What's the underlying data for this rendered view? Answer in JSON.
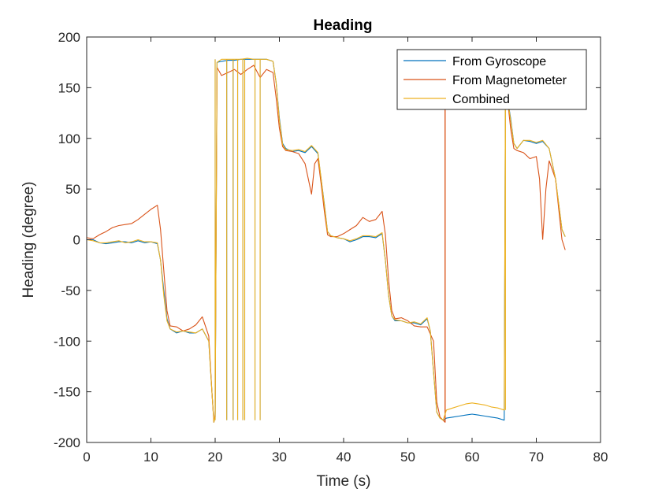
{
  "chart_data": {
    "type": "line",
    "title": "Heading",
    "xlabel": "Time (s)",
    "ylabel": "Heading (degree)",
    "xlim": [
      0,
      80
    ],
    "ylim": [
      -200,
      200
    ],
    "xticks": [
      0,
      10,
      20,
      30,
      40,
      50,
      60,
      70,
      80
    ],
    "yticks": [
      -200,
      -150,
      -100,
      -50,
      0,
      50,
      100,
      150,
      200
    ],
    "grid": false,
    "legend_position": "top-right",
    "series": [
      {
        "name": "From Gyroscope",
        "color": "#0072BD",
        "points": [
          [
            0,
            0
          ],
          [
            1,
            0
          ],
          [
            2,
            -3
          ],
          [
            3,
            -4
          ],
          [
            4,
            -3
          ],
          [
            5,
            -2
          ],
          [
            6,
            -2
          ],
          [
            7,
            -3
          ],
          [
            8,
            -1
          ],
          [
            9,
            -3
          ],
          [
            10,
            -2
          ],
          [
            11,
            -4
          ],
          [
            11.5,
            -20
          ],
          [
            12,
            -50
          ],
          [
            12.5,
            -78
          ],
          [
            13,
            -88
          ],
          [
            14,
            -92
          ],
          [
            15,
            -90
          ],
          [
            16,
            -92
          ],
          [
            17,
            -92
          ],
          [
            18,
            -88
          ],
          [
            19,
            -100
          ],
          [
            19.5,
            -150
          ],
          [
            19.8,
            -180
          ],
          [
            20,
            -175
          ],
          [
            20.3,
            175
          ],
          [
            21,
            176
          ],
          [
            22,
            177
          ],
          [
            23,
            177
          ],
          [
            24,
            178
          ],
          [
            25,
            178
          ],
          [
            26,
            178
          ],
          [
            27,
            178
          ],
          [
            28,
            178
          ],
          [
            29,
            176
          ],
          [
            29.5,
            155
          ],
          [
            30,
            120
          ],
          [
            30.5,
            95
          ],
          [
            31,
            90
          ],
          [
            32,
            87
          ],
          [
            33,
            88
          ],
          [
            34,
            86
          ],
          [
            35,
            92
          ],
          [
            36,
            85
          ],
          [
            36.5,
            60
          ],
          [
            37,
            35
          ],
          [
            37.5,
            8
          ],
          [
            38,
            4
          ],
          [
            39,
            2
          ],
          [
            40,
            1
          ],
          [
            41,
            -2
          ],
          [
            42,
            0
          ],
          [
            43,
            3
          ],
          [
            44,
            3
          ],
          [
            45,
            2
          ],
          [
            46,
            6
          ],
          [
            46.5,
            -20
          ],
          [
            47,
            -55
          ],
          [
            47.5,
            -75
          ],
          [
            48,
            -80
          ],
          [
            49,
            -80
          ],
          [
            50,
            -82
          ],
          [
            51,
            -82
          ],
          [
            52,
            -84
          ],
          [
            53,
            -78
          ],
          [
            53.5,
            -90
          ],
          [
            54,
            -130
          ],
          [
            54.5,
            -170
          ],
          [
            55,
            -176
          ],
          [
            55.5,
            -178
          ],
          [
            56,
            -176
          ],
          [
            57,
            -175
          ],
          [
            58,
            -174
          ],
          [
            59,
            -173
          ],
          [
            60,
            -172
          ],
          [
            61,
            -173
          ],
          [
            62,
            -174
          ],
          [
            63,
            -175
          ],
          [
            64,
            -176
          ],
          [
            65,
            -178
          ],
          [
            65.2,
            165
          ],
          [
            65.5,
            140
          ],
          [
            66,
            120
          ],
          [
            66.5,
            95
          ],
          [
            67,
            90
          ],
          [
            68,
            98
          ],
          [
            69,
            97
          ],
          [
            70,
            95
          ],
          [
            71,
            97
          ],
          [
            72,
            90
          ],
          [
            73,
            60
          ],
          [
            74,
            10
          ],
          [
            74.5,
            3
          ]
        ],
        "vertical_jumps": [
          [
            20,
            -178,
            178
          ],
          [
            21.8,
            -178,
            178
          ],
          [
            22.8,
            -178,
            178
          ],
          [
            23.5,
            -178,
            178
          ],
          [
            24.3,
            -178,
            178
          ],
          [
            24.6,
            -178,
            178
          ],
          [
            26.2,
            -178,
            178
          ],
          [
            27,
            -178,
            178
          ]
        ]
      },
      {
        "name": "From Magnetometer",
        "color": "#D95319",
        "points": [
          [
            0,
            2
          ],
          [
            1,
            1
          ],
          [
            2,
            5
          ],
          [
            3,
            8
          ],
          [
            4,
            12
          ],
          [
            5,
            14
          ],
          [
            6,
            15
          ],
          [
            7,
            16
          ],
          [
            8,
            20
          ],
          [
            9,
            25
          ],
          [
            10,
            30
          ],
          [
            11,
            34
          ],
          [
            11.5,
            10
          ],
          [
            12,
            -30
          ],
          [
            12.5,
            -70
          ],
          [
            13,
            -85
          ],
          [
            14,
            -86
          ],
          [
            15,
            -90
          ],
          [
            16,
            -88
          ],
          [
            17,
            -84
          ],
          [
            18,
            -76
          ],
          [
            19,
            -95
          ],
          [
            19.5,
            -150
          ],
          [
            19.8,
            -180
          ],
          [
            20,
            -172
          ],
          [
            20.3,
            170
          ],
          [
            21,
            162
          ],
          [
            22,
            165
          ],
          [
            23,
            168
          ],
          [
            24,
            163
          ],
          [
            25,
            168
          ],
          [
            26,
            172
          ],
          [
            27,
            160
          ],
          [
            28,
            168
          ],
          [
            29,
            165
          ],
          [
            29.5,
            140
          ],
          [
            30,
            110
          ],
          [
            30.5,
            92
          ],
          [
            31,
            88
          ],
          [
            32,
            87
          ],
          [
            33,
            85
          ],
          [
            34,
            75
          ],
          [
            35,
            45
          ],
          [
            35.5,
            75
          ],
          [
            36,
            80
          ],
          [
            36.5,
            55
          ],
          [
            37,
            28
          ],
          [
            37.5,
            5
          ],
          [
            38,
            3
          ],
          [
            39,
            3
          ],
          [
            40,
            6
          ],
          [
            41,
            10
          ],
          [
            42,
            14
          ],
          [
            43,
            22
          ],
          [
            44,
            18
          ],
          [
            45,
            20
          ],
          [
            46,
            28
          ],
          [
            46.5,
            5
          ],
          [
            47,
            -40
          ],
          [
            47.5,
            -70
          ],
          [
            48,
            -78
          ],
          [
            49,
            -77
          ],
          [
            50,
            -80
          ],
          [
            51,
            -85
          ],
          [
            52,
            -86
          ],
          [
            53,
            -86
          ],
          [
            54,
            -100
          ],
          [
            54.5,
            -160
          ],
          [
            55,
            -175
          ],
          [
            55.8,
            -180
          ],
          [
            55.8,
            160
          ]
        ],
        "vertical_jumps": [
          [
            55.8,
            -180,
            160
          ]
        ],
        "points_after_gap": [
          [
            65.3,
            160
          ],
          [
            65.5,
            140
          ],
          [
            66,
            110
          ],
          [
            66.5,
            90
          ],
          [
            67,
            88
          ],
          [
            68,
            86
          ],
          [
            69,
            80
          ],
          [
            70,
            82
          ],
          [
            70.5,
            60
          ],
          [
            71,
            0
          ],
          [
            71.5,
            50
          ],
          [
            72,
            78
          ],
          [
            73,
            60
          ],
          [
            73.5,
            30
          ],
          [
            74,
            0
          ],
          [
            74.5,
            -10
          ]
        ]
      },
      {
        "name": "Combined",
        "color": "#EDB120",
        "points": [
          [
            0,
            0
          ],
          [
            1,
            -1
          ],
          [
            2,
            -3
          ],
          [
            3,
            -3
          ],
          [
            4,
            -2
          ],
          [
            5,
            -1
          ],
          [
            6,
            -3
          ],
          [
            7,
            -2
          ],
          [
            8,
            0
          ],
          [
            9,
            -2
          ],
          [
            10,
            -2
          ],
          [
            11,
            -3
          ],
          [
            11.5,
            -20
          ],
          [
            12,
            -55
          ],
          [
            12.5,
            -80
          ],
          [
            13,
            -88
          ],
          [
            14,
            -91
          ],
          [
            15,
            -90
          ],
          [
            16,
            -91
          ],
          [
            17,
            -92
          ],
          [
            18,
            -88
          ],
          [
            19,
            -100
          ],
          [
            19.5,
            -150
          ],
          [
            19.8,
            -180
          ],
          [
            20,
            -175
          ],
          [
            20.3,
            175
          ],
          [
            21,
            178
          ],
          [
            22,
            178
          ],
          [
            23,
            178
          ],
          [
            24,
            178
          ],
          [
            25,
            179
          ],
          [
            26,
            178
          ],
          [
            27,
            178
          ],
          [
            28,
            178
          ],
          [
            29,
            176
          ],
          [
            29.5,
            155
          ],
          [
            30,
            118
          ],
          [
            30.5,
            94
          ],
          [
            31,
            89
          ],
          [
            32,
            88
          ],
          [
            33,
            89
          ],
          [
            34,
            87
          ],
          [
            35,
            93
          ],
          [
            36,
            86
          ],
          [
            36.5,
            60
          ],
          [
            37,
            34
          ],
          [
            37.5,
            8
          ],
          [
            38,
            4
          ],
          [
            39,
            2
          ],
          [
            40,
            1
          ],
          [
            41,
            -1
          ],
          [
            42,
            1
          ],
          [
            43,
            4
          ],
          [
            44,
            4
          ],
          [
            45,
            3
          ],
          [
            46,
            7
          ],
          [
            46.5,
            -20
          ],
          [
            47,
            -55
          ],
          [
            47.5,
            -75
          ],
          [
            48,
            -79
          ],
          [
            49,
            -80
          ],
          [
            50,
            -82
          ],
          [
            51,
            -81
          ],
          [
            52,
            -83
          ],
          [
            53,
            -77
          ],
          [
            53.5,
            -90
          ],
          [
            54,
            -130
          ],
          [
            54.5,
            -170
          ],
          [
            55,
            -176
          ],
          [
            55.5,
            -178
          ],
          [
            56,
            -168
          ],
          [
            57,
            -166
          ],
          [
            58,
            -164
          ],
          [
            59,
            -162
          ],
          [
            60,
            -161
          ],
          [
            61,
            -162
          ],
          [
            62,
            -163
          ],
          [
            63,
            -165
          ],
          [
            64,
            -166
          ],
          [
            65,
            -168
          ],
          [
            65.2,
            165
          ],
          [
            65.5,
            140
          ],
          [
            66,
            118
          ],
          [
            66.5,
            95
          ],
          [
            67,
            90
          ],
          [
            68,
            98
          ],
          [
            69,
            98
          ],
          [
            70,
            96
          ],
          [
            71,
            98
          ],
          [
            72,
            90
          ],
          [
            73,
            60
          ],
          [
            74,
            10
          ],
          [
            74.5,
            3
          ]
        ],
        "vertical_jumps": [
          [
            20,
            -178,
            178
          ],
          [
            21.8,
            -178,
            178
          ],
          [
            22.8,
            -178,
            178
          ],
          [
            23.5,
            -178,
            178
          ],
          [
            24.3,
            -178,
            178
          ],
          [
            24.6,
            -178,
            178
          ],
          [
            26.2,
            -178,
            178
          ],
          [
            27,
            -178,
            178
          ],
          [
            65.2,
            -168,
            165
          ]
        ]
      }
    ]
  }
}
